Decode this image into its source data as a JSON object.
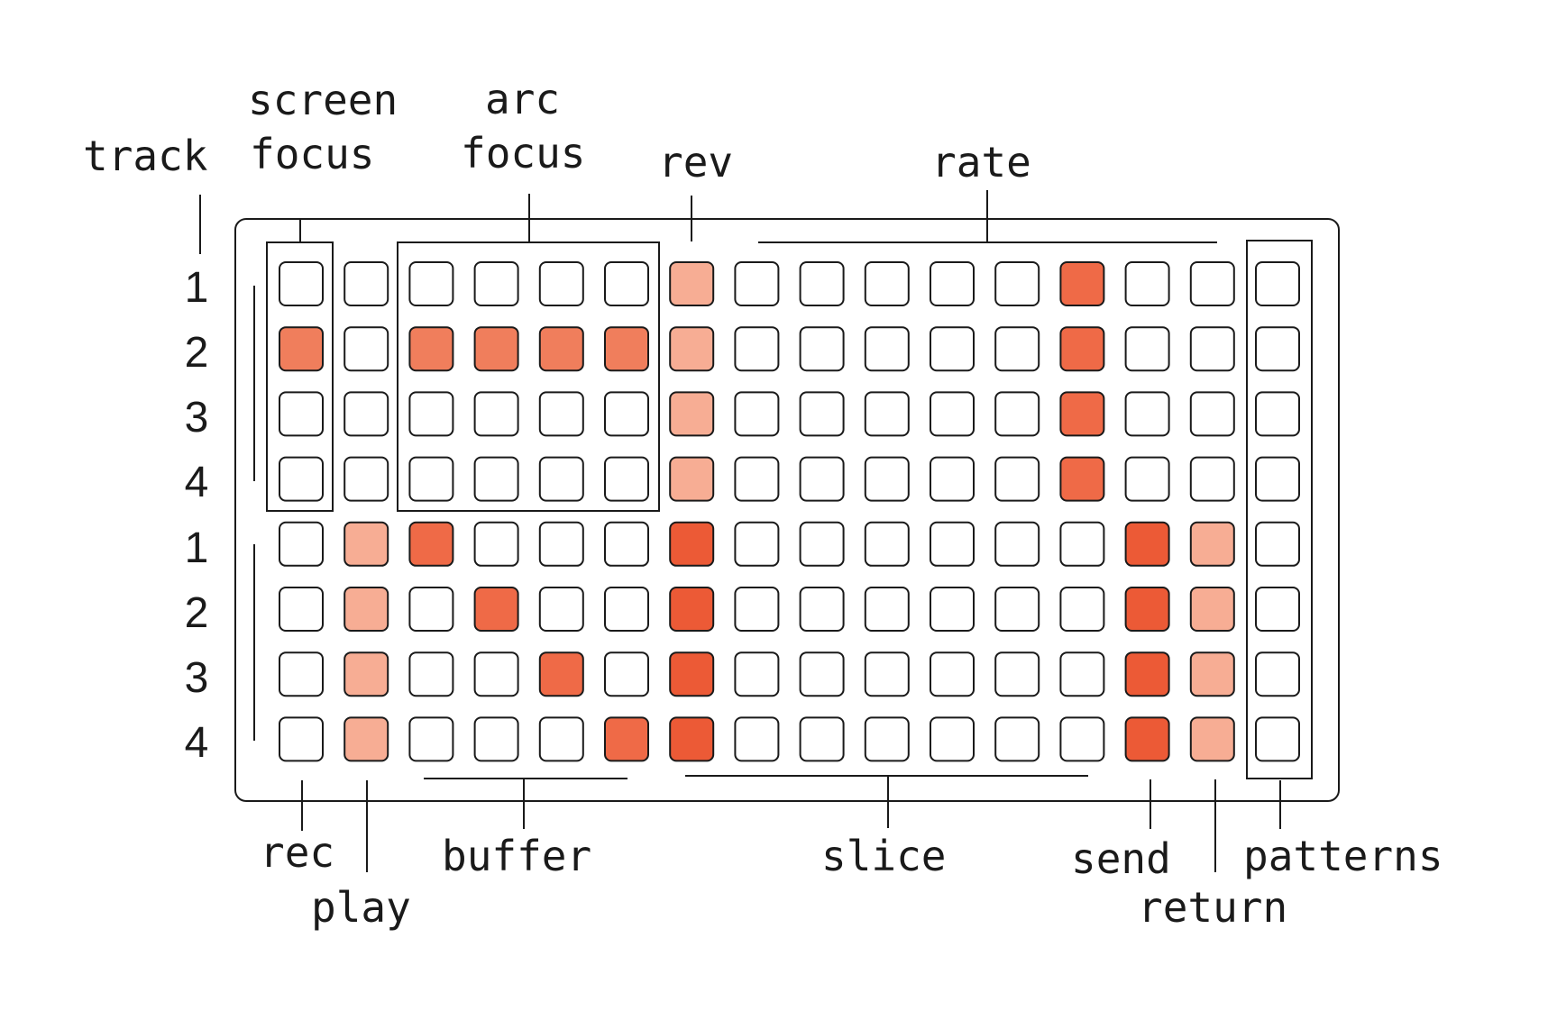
{
  "labels": {
    "track": "track",
    "screen_focus": [
      "screen",
      "focus"
    ],
    "arc_focus": [
      "arc",
      "focus"
    ],
    "rev": "rev",
    "rate": "rate",
    "rec": "rec",
    "play": "play",
    "buffer": "buffer",
    "slice": "slice",
    "send": "send",
    "return": "return",
    "patterns": "patterns"
  },
  "row_numbers": [
    "1",
    "2",
    "3",
    "4",
    "1",
    "2",
    "3",
    "4"
  ],
  "colors": {
    "light": "#f7ad94",
    "medium": "#f07e5c",
    "strong": "#ef6a47",
    "dark": "#ec5a36",
    "empty": "#ffffff",
    "stroke": "#1a1a1a"
  },
  "grid": [
    [
      0,
      0,
      0,
      0,
      0,
      0,
      1,
      0,
      0,
      0,
      0,
      0,
      3,
      0,
      0,
      0
    ],
    [
      2,
      0,
      2,
      2,
      2,
      2,
      1,
      0,
      0,
      0,
      0,
      0,
      3,
      0,
      0,
      0
    ],
    [
      0,
      0,
      0,
      0,
      0,
      0,
      1,
      0,
      0,
      0,
      0,
      0,
      3,
      0,
      0,
      0
    ],
    [
      0,
      0,
      0,
      0,
      0,
      0,
      1,
      0,
      0,
      0,
      0,
      0,
      3,
      0,
      0,
      0
    ],
    [
      0,
      1,
      3,
      0,
      0,
      0,
      4,
      0,
      0,
      0,
      0,
      0,
      0,
      4,
      1,
      0
    ],
    [
      0,
      1,
      0,
      3,
      0,
      0,
      4,
      0,
      0,
      0,
      0,
      0,
      0,
      4,
      1,
      0
    ],
    [
      0,
      1,
      0,
      0,
      3,
      0,
      4,
      0,
      0,
      0,
      0,
      0,
      0,
      4,
      1,
      0
    ],
    [
      0,
      1,
      0,
      0,
      0,
      3,
      4,
      0,
      0,
      0,
      0,
      0,
      0,
      4,
      1,
      0
    ]
  ]
}
